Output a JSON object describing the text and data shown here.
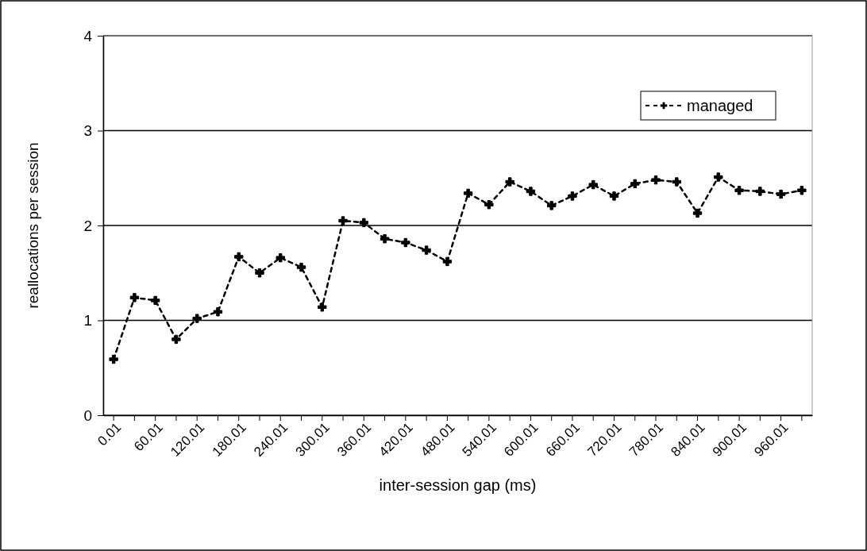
{
  "chart_data": {
    "type": "line",
    "xlabel": "inter-session gap (ms)",
    "ylabel": "reallocations per session",
    "categories": [
      "0.01",
      null,
      "60.01",
      null,
      "120.01",
      null,
      "180.01",
      null,
      "240.01",
      null,
      "300.01",
      null,
      "360.01",
      null,
      "420.01",
      null,
      "480.01",
      null,
      "540.01",
      null,
      "600.01",
      null,
      "660.01",
      null,
      "720.01",
      null,
      "780.01",
      null,
      "840.01",
      null,
      "900.01",
      null,
      "960.01",
      null
    ],
    "series": [
      {
        "name": "managed",
        "color": "#000000",
        "values": [
          0.59,
          1.24,
          1.21,
          0.8,
          1.02,
          1.09,
          1.67,
          1.5,
          1.66,
          1.56,
          1.14,
          2.05,
          2.03,
          1.86,
          1.82,
          1.74,
          1.62,
          2.34,
          2.22,
          2.46,
          2.36,
          2.21,
          2.31,
          2.43,
          2.31,
          2.44,
          2.48,
          2.46,
          2.13,
          2.51,
          2.37,
          2.36,
          2.33,
          2.37
        ]
      }
    ],
    "ylim": [
      0,
      4
    ],
    "yticks": [
      0,
      1,
      2,
      3,
      4
    ],
    "grid": "y",
    "legend": "top right",
    "marker": "cross",
    "line_style": "dashed"
  }
}
